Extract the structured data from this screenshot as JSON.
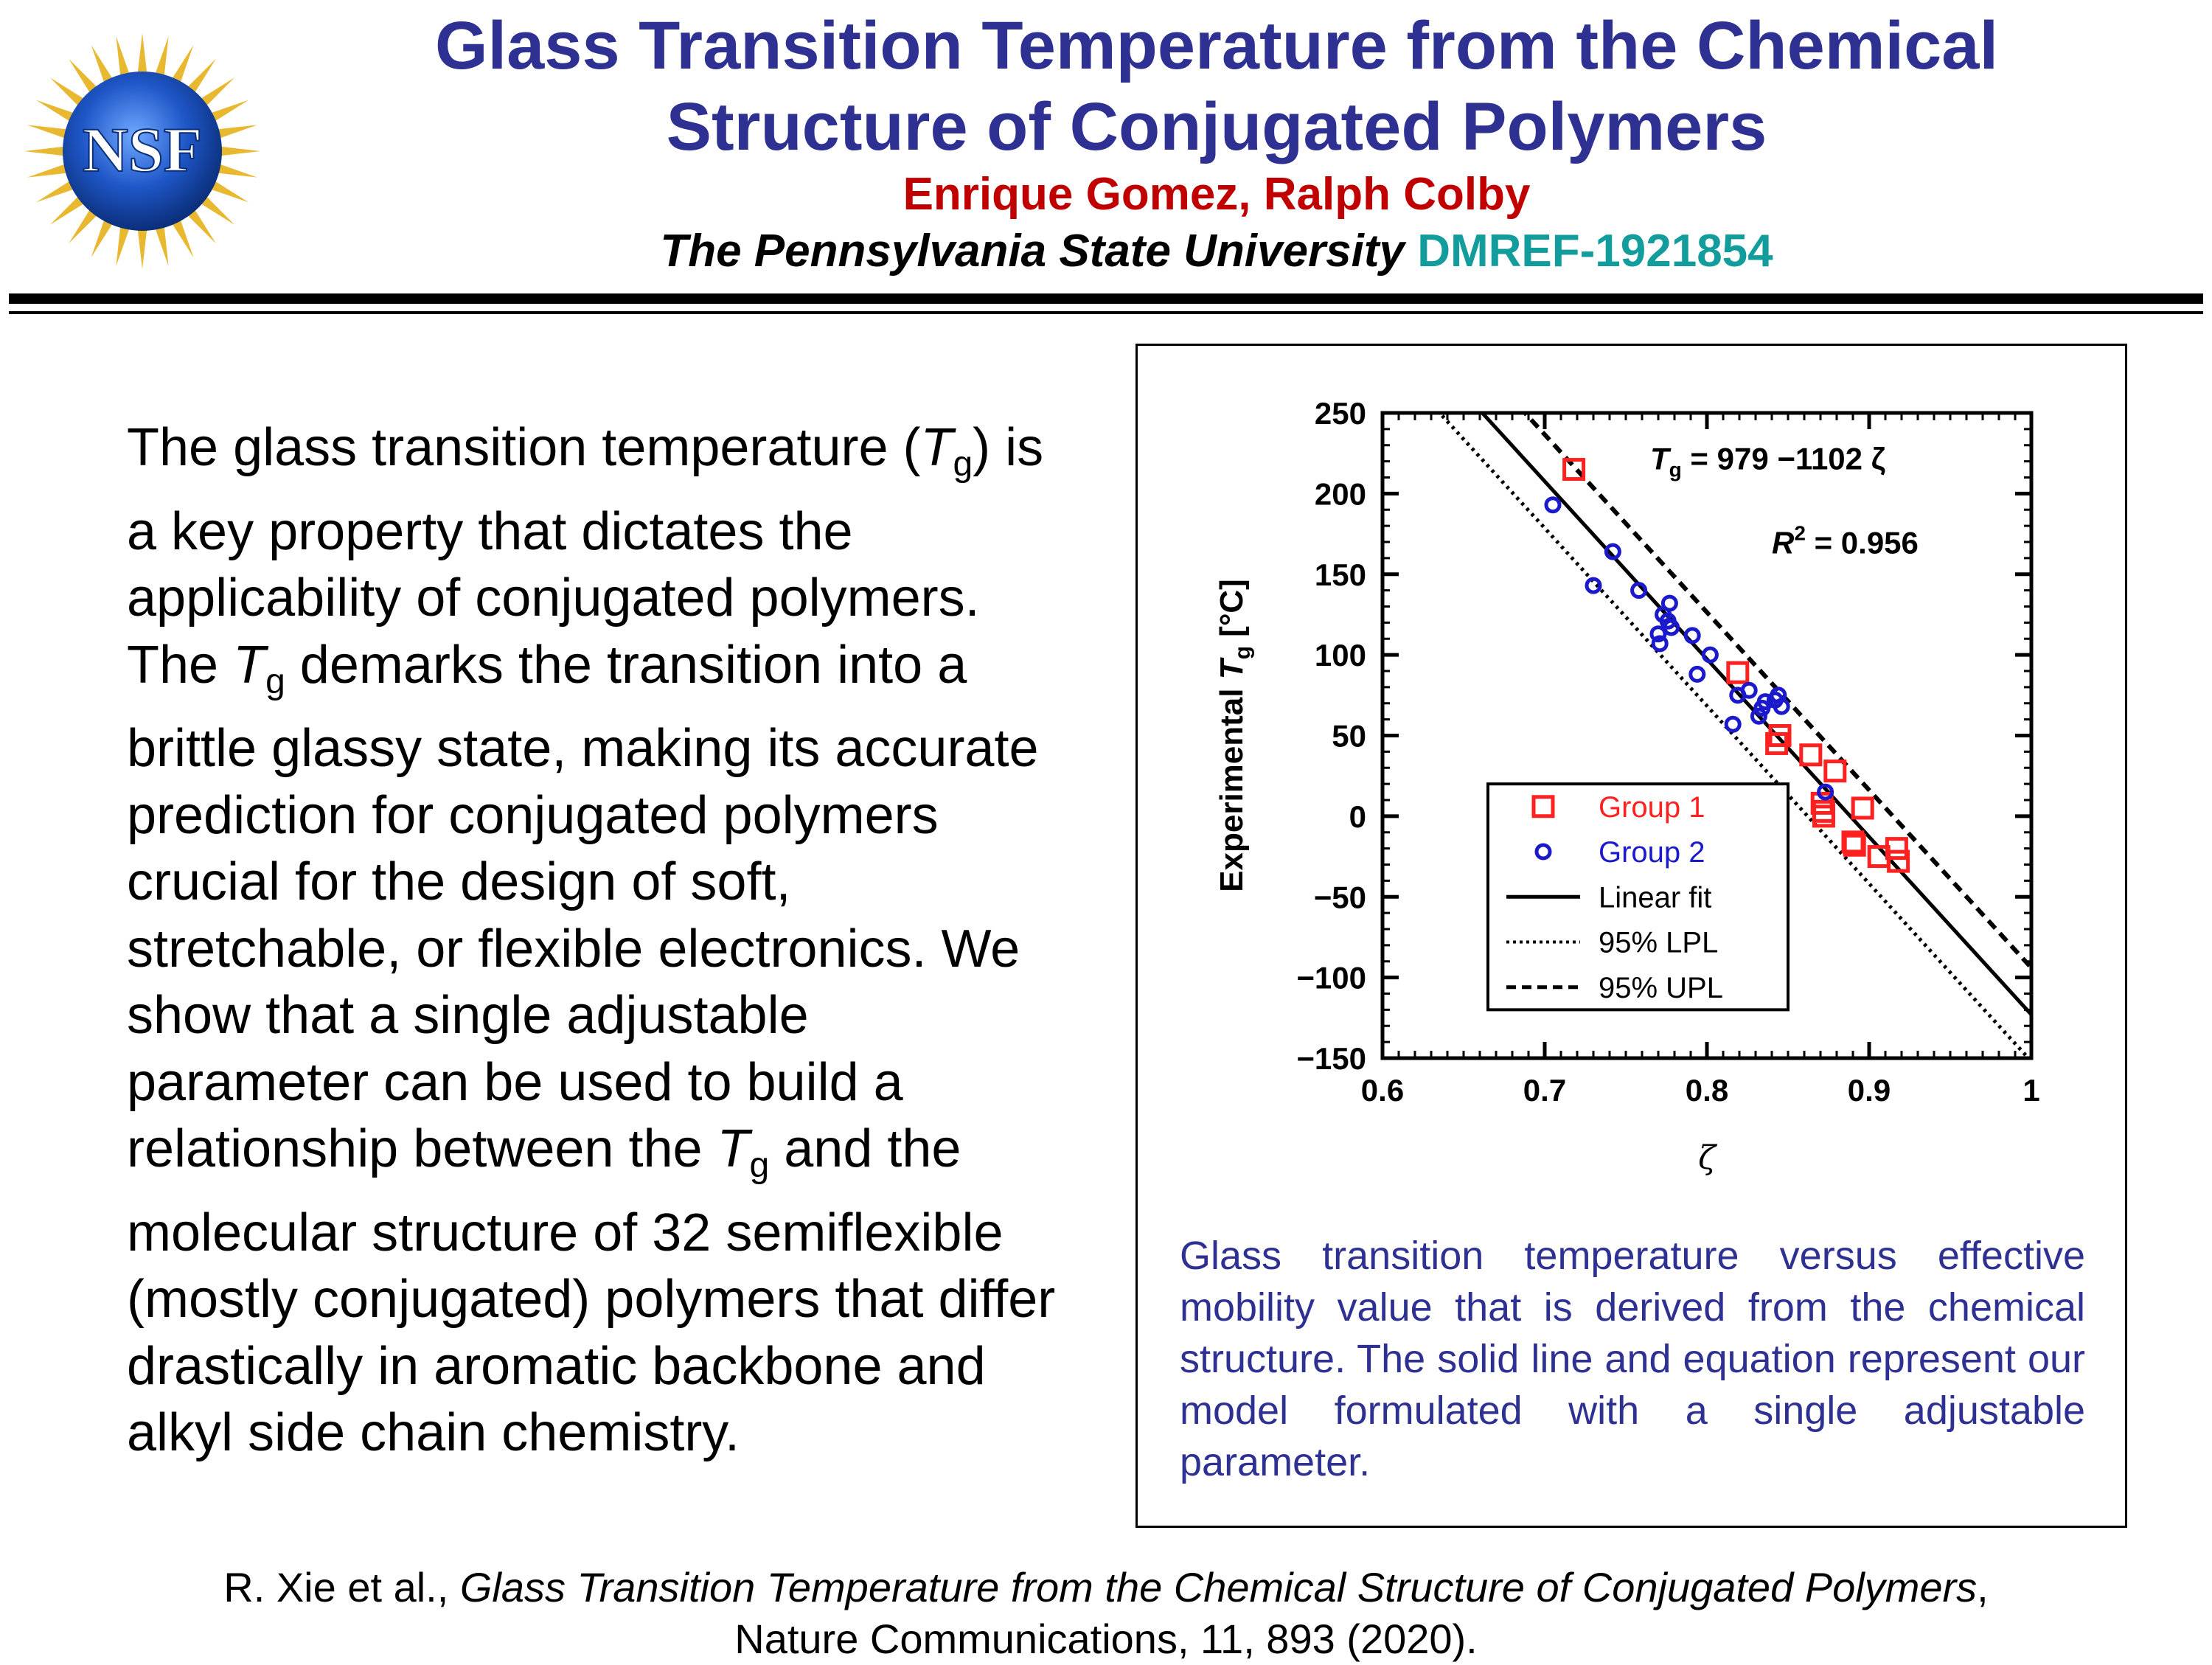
{
  "header": {
    "title_line1": "Glass Transition Temperature from the Chemical",
    "title_line2": "Structure of Conjugated Polymers",
    "authors": "Enrique Gomez, Ralph Colby",
    "affiliation": "The Pennsylvania State University",
    "grant": "DMREF-1921854",
    "logo_text": "NSF"
  },
  "body": {
    "p1": "The glass transition temperature (",
    "tg_T": "T",
    "tg_sub": "g",
    "p2": ") is a key property that dictates the applicability of conjugated polymers. The ",
    "p3": " demarks the transition into a brittle glassy state, making its accurate prediction for conjugated polymers crucial for the design of soft, stretchable, or flexible electronics. We show that a single adjustable parameter can be used to build a relationship between the ",
    "p4": " and the molecular structure of 32 semiflexible (mostly conjugated) polymers that differ drastically in aromatic backbone and alkyl side chain chemistry."
  },
  "caption": "Glass transition temperature versus effective mobility value that is derived from the chemical structure. The solid line and equation represent our model formulated with a single adjustable parameter.",
  "citation": {
    "authors": "R. Xie et al., ",
    "title": "Glass Transition Temperature from the Chemical Structure of Conjugated Polymers",
    "sep": ",",
    "journal": "Nature Communications, 11, 893 (2020)."
  },
  "colors": {
    "title": "#2e3192",
    "authors": "#c00000",
    "grant": "#139c9c",
    "caption": "#2e3192",
    "group1": "#ff2020",
    "group2": "#1a1acc"
  },
  "chart_data": {
    "type": "scatter",
    "xlabel": "ζ",
    "ylabel_prefix": "Experimental ",
    "ylabel_T": "T",
    "ylabel_sub": "g",
    "ylabel_suffix": " [°C]",
    "xlim": [
      0.6,
      1.0
    ],
    "ylim": [
      -150,
      250
    ],
    "xticks": [
      0.6,
      0.7,
      0.8,
      0.9,
      1.0
    ],
    "xtick_labels": [
      "0.6",
      "0.7",
      "0.8",
      "0.9",
      "1"
    ],
    "yticks": [
      -150,
      -100,
      -50,
      0,
      50,
      100,
      150,
      200,
      250
    ],
    "ytick_labels": [
      "−150",
      "−100",
      "−50",
      "0",
      "50",
      "100",
      "150",
      "200",
      "250"
    ],
    "annotation_eq_T": "T",
    "annotation_eq_sub": "g",
    "annotation_eq_rest": " = 979 −1102 ζ",
    "annotation_r2_R": "R",
    "annotation_r2_sup": "2",
    "annotation_r2_rest": " = 0.956",
    "fit": {
      "intercept": 979,
      "slope": -1102
    },
    "lpl_offset": -29,
    "upl_offset": 29,
    "legend_position": "lower-left",
    "legend": [
      "Group 1",
      "Group 2",
      "Linear fit",
      "95% LPL",
      "95% UPL"
    ],
    "series": [
      {
        "name": "Group 1",
        "marker": "square",
        "points": [
          [
            0.718,
            215
          ],
          [
            0.819,
            89
          ],
          [
            0.843,
            45
          ],
          [
            0.845,
            50
          ],
          [
            0.864,
            38
          ],
          [
            0.871,
            8
          ],
          [
            0.872,
            0
          ],
          [
            0.872,
            3
          ],
          [
            0.879,
            28
          ],
          [
            0.89,
            -16
          ],
          [
            0.891,
            -18
          ],
          [
            0.896,
            5
          ],
          [
            0.906,
            -25
          ],
          [
            0.917,
            -20
          ],
          [
            0.918,
            -28
          ]
        ]
      },
      {
        "name": "Group 2",
        "marker": "circle",
        "points": [
          [
            0.705,
            193
          ],
          [
            0.73,
            143
          ],
          [
            0.742,
            164
          ],
          [
            0.758,
            140
          ],
          [
            0.77,
            113
          ],
          [
            0.771,
            107
          ],
          [
            0.773,
            125
          ],
          [
            0.776,
            121
          ],
          [
            0.777,
            132
          ],
          [
            0.778,
            117
          ],
          [
            0.791,
            112
          ],
          [
            0.794,
            88
          ],
          [
            0.802,
            100
          ],
          [
            0.816,
            57
          ],
          [
            0.819,
            75
          ],
          [
            0.826,
            78
          ],
          [
            0.832,
            62
          ],
          [
            0.834,
            67
          ],
          [
            0.836,
            71
          ],
          [
            0.842,
            72
          ],
          [
            0.844,
            75
          ],
          [
            0.846,
            68
          ],
          [
            0.873,
            15
          ]
        ]
      }
    ]
  }
}
